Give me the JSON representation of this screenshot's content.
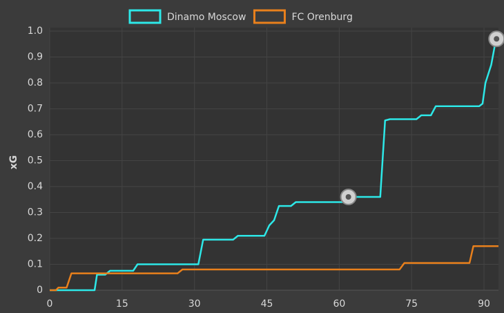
{
  "chart_data": {
    "type": "line",
    "y_label": "xG",
    "xlim": [
      0,
      93
    ],
    "xticks": [
      0,
      15,
      30,
      45,
      60,
      75,
      90
    ],
    "ylim": [
      0,
      1
    ],
    "yticks": [
      0,
      0.1,
      0.2,
      0.3,
      0.4,
      0.5,
      0.6,
      0.7,
      0.8,
      0.9,
      {
        "value": 1,
        "label": "1.0"
      }
    ],
    "grid": true,
    "legend": "top",
    "series": [
      {
        "name": "Dinamo Moscow",
        "color": "#2de8e8",
        "x": [
          0,
          9.3,
          9.8,
          11.5,
          12.5,
          17.3,
          18.2,
          30.8,
          31.8,
          38,
          39,
          44.5,
          45.5,
          46.5,
          47.5,
          50,
          51,
          61,
          62,
          68.5,
          69.5,
          70.5,
          76,
          77,
          79,
          80,
          89,
          89.7,
          90.3,
          91.5,
          92.5
        ],
        "values": [
          0,
          0,
          0.06,
          0.06,
          0.075,
          0.075,
          0.1,
          0.1,
          0.195,
          0.195,
          0.21,
          0.21,
          0.25,
          0.27,
          0.325,
          0.325,
          0.34,
          0.34,
          0.36,
          0.36,
          0.655,
          0.66,
          0.66,
          0.675,
          0.675,
          0.71,
          0.71,
          0.72,
          0.8,
          0.87,
          0.97
        ]
      },
      {
        "name": "FC Orenburg",
        "color": "#e9801c",
        "x": [
          0,
          1.3,
          1.8,
          3.5,
          4.5,
          26.5,
          27.5,
          72.5,
          73.5,
          87,
          87.8,
          93
        ],
        "values": [
          0,
          0,
          0.01,
          0.01,
          0.065,
          0.065,
          0.08,
          0.08,
          0.105,
          0.105,
          0.17,
          0.17
        ]
      }
    ],
    "goals": [
      {
        "x": 61.9,
        "y": 0.36
      },
      {
        "x": 92.6,
        "y": 0.97
      }
    ]
  }
}
